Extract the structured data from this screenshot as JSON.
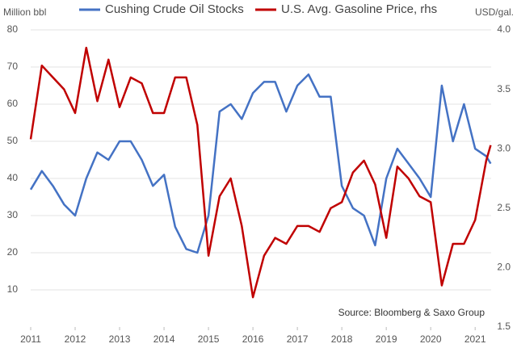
{
  "chart_data": {
    "type": "line",
    "y_label": "Million bbl",
    "y2_label": "USD/gal.",
    "annotation": "Source: Bloomberg & Saxo Group",
    "x": [
      2011.0,
      2011.25,
      2011.5,
      2011.75,
      2012.0,
      2012.25,
      2012.5,
      2012.75,
      2013.0,
      2013.25,
      2013.5,
      2013.75,
      2014.0,
      2014.25,
      2014.5,
      2014.75,
      2015.0,
      2015.25,
      2015.5,
      2015.75,
      2016.0,
      2016.25,
      2016.5,
      2016.75,
      2017.0,
      2017.25,
      2017.5,
      2017.75,
      2018.0,
      2018.25,
      2018.5,
      2018.75,
      2019.0,
      2019.25,
      2019.5,
      2019.75,
      2020.0,
      2020.25,
      2020.5,
      2020.75,
      2021.0,
      2021.25,
      2021.35
    ],
    "series": [
      {
        "name": "Cushing Crude Oil Stocks",
        "color": "#4472c4",
        "axis": "y",
        "values": [
          37,
          42,
          38,
          33,
          30,
          40,
          47,
          45,
          50,
          50,
          45,
          38,
          41,
          27,
          21,
          20,
          30,
          58,
          60,
          56,
          63,
          66,
          66,
          58,
          65,
          68,
          62,
          62,
          38,
          32,
          30,
          22,
          40,
          48,
          44,
          40,
          35,
          65,
          50,
          60,
          48,
          46,
          44
        ]
      },
      {
        "name": "U.S. Avg. Gasoline Price, rhs",
        "color": "#c00000",
        "axis": "y2",
        "values": [
          3.08,
          3.7,
          3.6,
          3.5,
          3.3,
          3.85,
          3.4,
          3.75,
          3.35,
          3.6,
          3.55,
          3.3,
          3.3,
          3.6,
          3.6,
          3.2,
          2.1,
          2.6,
          2.75,
          2.35,
          1.75,
          2.1,
          2.25,
          2.2,
          2.35,
          2.35,
          2.3,
          2.5,
          2.55,
          2.8,
          2.9,
          2.7,
          2.25,
          2.85,
          2.75,
          2.6,
          2.55,
          1.85,
          2.2,
          2.2,
          2.4,
          2.9,
          3.03
        ]
      }
    ],
    "xlim": [
      2011,
      2021.36
    ],
    "xticks": [
      2011,
      2012,
      2013,
      2014,
      2015,
      2016,
      2017,
      2018,
      2019,
      2020,
      2021
    ],
    "ylim": [
      0,
      80
    ],
    "yticks": [
      10,
      20,
      30,
      40,
      50,
      60,
      70,
      80
    ],
    "y2lim": [
      1.5,
      4.0
    ],
    "y2ticks": [
      {
        "value": 1.5,
        "label": "1.5"
      },
      {
        "value": 2.0,
        "label": "2.0"
      },
      {
        "value": 2.5,
        "label": "2.5"
      },
      {
        "value": 3.0,
        "label": "3.0"
      },
      {
        "value": 3.5,
        "label": "3.5"
      },
      {
        "value": 4.0,
        "label": "4.0"
      }
    ],
    "grid": true
  }
}
